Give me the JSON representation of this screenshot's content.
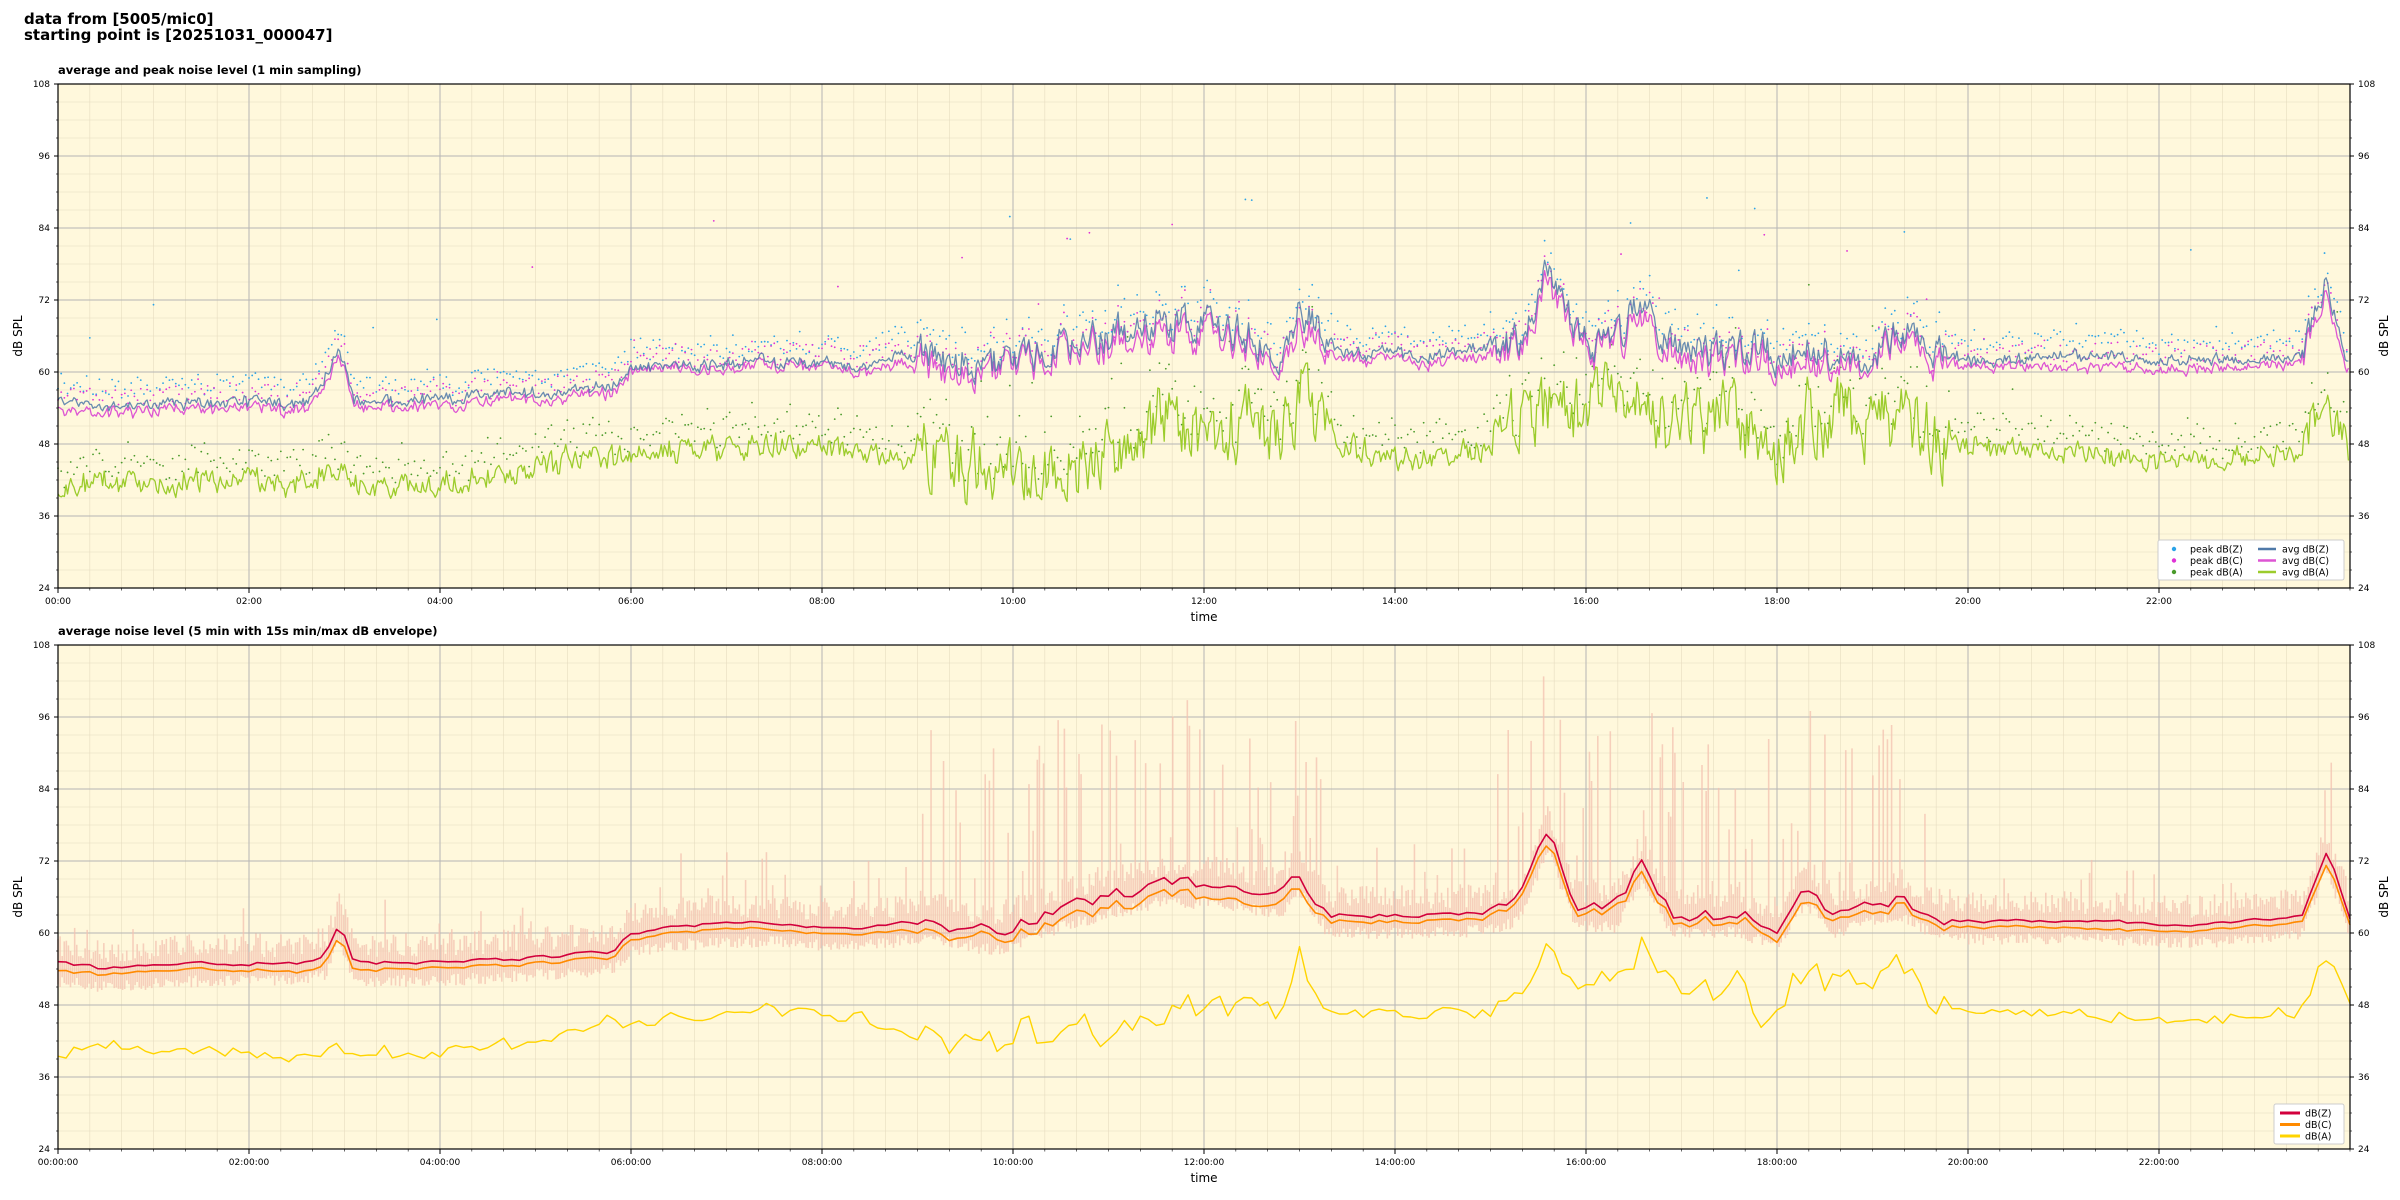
{
  "header": {
    "line1": "data from [5005/mic0]",
    "line2": "starting point is [20251031_000047]"
  },
  "colors": {
    "plot_bg": "#fff8dc",
    "peak_z": "#2aa3e8",
    "peak_c": "#e032d6",
    "peak_a": "#4a9a2a",
    "avg_z": "#4f79a8",
    "avg_c": "#dd55d3",
    "avg_a": "#9ccc2c",
    "env": "#f4c2b0",
    "z5": "#d2003c",
    "c5": "#ff8a00",
    "a5": "#ffd400"
  },
  "chart_data": [
    {
      "type": "line",
      "title": "average and peak noise level (1 min sampling)",
      "xlabel": "time",
      "ylabel": "dB SPL",
      "ylim": [
        24,
        108
      ],
      "yticks": [
        "24",
        "36",
        "48",
        "60",
        "72",
        "84",
        "96",
        "108"
      ],
      "xlim_hours": [
        0,
        24
      ],
      "xticks": [
        "00:00",
        "02:00",
        "04:00",
        "06:00",
        "08:00",
        "10:00",
        "12:00",
        "14:00",
        "16:00",
        "18:00",
        "20:00",
        "22:00"
      ],
      "grid": true,
      "legend_position": "bottom-right",
      "legend": [
        "peak dB(Z)",
        "peak dB(C)",
        "peak dB(A)",
        "avg dB(Z)",
        "avg dB(C)",
        "avg dB(A)"
      ],
      "series_profile": {
        "x_hours": [
          0,
          0.25,
          0.5,
          1,
          1.5,
          2,
          2.4,
          2.7,
          2.95,
          3.1,
          3.5,
          4,
          4.5,
          5,
          5.5,
          5.8,
          6,
          6.5,
          7,
          7.5,
          8,
          8.5,
          8.9,
          9.3,
          9.7,
          10,
          10.5,
          11,
          11.5,
          12,
          12.5,
          12.8,
          13,
          13.5,
          14,
          14.5,
          15,
          15.3,
          15.6,
          15.9,
          16.3,
          16.5,
          16.8,
          17.2,
          17.6,
          17.8,
          18,
          18.3,
          18.6,
          19,
          19.3,
          19.6,
          20,
          20.5,
          21,
          21.5,
          22,
          22.5,
          23,
          23.5,
          23.75,
          24
        ],
        "avg_z": [
          55,
          55,
          54,
          54.5,
          55,
          55,
          54.5,
          56,
          64,
          55,
          55,
          55.5,
          56,
          56.5,
          57,
          57.5,
          60.5,
          61,
          61.5,
          61.5,
          61,
          61,
          63,
          62,
          61,
          61,
          64,
          66,
          68,
          67,
          66,
          64,
          70,
          63,
          63,
          63,
          64,
          65,
          77,
          65,
          64,
          70,
          67,
          64,
          63,
          66,
          61,
          64,
          63,
          64,
          66,
          64,
          62,
          62,
          63,
          62.5,
          62,
          62,
          62,
          62.5,
          76,
          62
        ],
        "avg_c": [
          53.5,
          53.5,
          53,
          53.5,
          54,
          54,
          53.5,
          55,
          63,
          54,
          54,
          54.5,
          55,
          55.5,
          56,
          56.5,
          60,
          60.5,
          60.5,
          61,
          60.5,
          60,
          61.5,
          60,
          59.5,
          60,
          63,
          64.5,
          66,
          65.5,
          64.5,
          63,
          67,
          62,
          62,
          62,
          62.5,
          64,
          75,
          64,
          63,
          68,
          65,
          62,
          62,
          64,
          59,
          62,
          61.5,
          63,
          65,
          62,
          61,
          61,
          61,
          61,
          60.5,
          60.5,
          61,
          61.5,
          74,
          61
        ],
        "avg_a": [
          40,
          41,
          41.5,
          41,
          42,
          42,
          41,
          42.5,
          44,
          40.5,
          41,
          41.5,
          42.5,
          44,
          46,
          46,
          46.5,
          47,
          47.5,
          48,
          47.5,
          46,
          45.5,
          44.5,
          43,
          42.5,
          44.5,
          46,
          52,
          50,
          52,
          49,
          56,
          47,
          46,
          46,
          47,
          51,
          55,
          54,
          56,
          55,
          53,
          52,
          53,
          46,
          45,
          52,
          53,
          52,
          52,
          48,
          48,
          47,
          47,
          46,
          45.5,
          45.5,
          46,
          47,
          55,
          47
        ]
      }
    },
    {
      "type": "line",
      "title": "average noise level (5 min with 15s min/max dB envelope)",
      "xlabel": "time",
      "ylabel": "dB SPL",
      "ylim": [
        24,
        108
      ],
      "yticks": [
        "24",
        "36",
        "48",
        "60",
        "72",
        "84",
        "96",
        "108"
      ],
      "xlim_hours": [
        0,
        24
      ],
      "xticks": [
        "00:00:00",
        "02:00:00",
        "04:00:00",
        "06:00:00",
        "08:00:00",
        "10:00:00",
        "12:00:00",
        "14:00:00",
        "16:00:00",
        "18:00:00",
        "20:00:00",
        "22:00:00"
      ],
      "grid": true,
      "legend_position": "bottom-right",
      "legend": [
        "dB(Z)",
        "dB(C)",
        "dB(A)"
      ],
      "series_profile": {
        "x_hours": [
          0,
          0.5,
          1,
          1.5,
          2,
          2.5,
          2.8,
          2.95,
          3.1,
          3.5,
          4,
          4.5,
          5,
          5.5,
          5.8,
          6,
          6.5,
          7,
          7.5,
          8,
          8.5,
          9,
          9.5,
          9.8,
          10,
          10.5,
          11,
          11.5,
          12,
          12.5,
          12.8,
          13,
          13.3,
          14,
          14.5,
          15,
          15.3,
          15.6,
          15.9,
          16.3,
          16.6,
          16.9,
          17.3,
          17.6,
          17.8,
          18,
          18.3,
          18.6,
          19,
          19.3,
          19.6,
          20,
          20.5,
          21,
          21.5,
          22,
          22.5,
          23,
          23.5,
          23.75,
          24
        ],
        "z": [
          55,
          54,
          54.5,
          55,
          55,
          55,
          56,
          62,
          55,
          55,
          55,
          55.5,
          56,
          56.5,
          57,
          60,
          61,
          61.5,
          61.5,
          61,
          61,
          62,
          61,
          60,
          61,
          64,
          66,
          68,
          68,
          67,
          66,
          70,
          63,
          63,
          63,
          63.5,
          65,
          77,
          64,
          64,
          72,
          63,
          63,
          63,
          62,
          61,
          68,
          63,
          65,
          66,
          63,
          62,
          62,
          62,
          62,
          61.5,
          61.5,
          62,
          63,
          74,
          63
        ],
        "c": [
          53.5,
          53,
          53.5,
          54,
          54,
          53.5,
          54.5,
          60,
          53.5,
          54,
          54,
          54.5,
          55,
          55.5,
          56,
          59,
          60,
          60.5,
          60.5,
          60,
          60,
          60.5,
          59.5,
          59,
          59.5,
          62,
          64,
          66,
          66,
          65,
          64,
          68,
          62,
          62,
          62,
          62.5,
          64,
          75,
          63,
          63,
          70,
          62,
          62,
          62,
          61,
          59.5,
          66,
          62,
          63.5,
          65,
          62,
          61,
          61,
          61,
          60.5,
          60.5,
          60.5,
          61,
          62,
          72,
          62
        ],
        "a": [
          40,
          42,
          40,
          41,
          40,
          39.5,
          40,
          42,
          39,
          40,
          40,
          41,
          42,
          44,
          46,
          45,
          45.5,
          47,
          47.5,
          46.5,
          45.5,
          43.5,
          42,
          41,
          43,
          43,
          44,
          46,
          48,
          47,
          48,
          57,
          46,
          46.5,
          46.5,
          47,
          51,
          56,
          52,
          55,
          58,
          53,
          51,
          52,
          45,
          46,
          54,
          51,
          52,
          55,
          48,
          47,
          47,
          46.5,
          46,
          45.5,
          45.5,
          46,
          47,
          56,
          48
        ]
      }
    }
  ]
}
